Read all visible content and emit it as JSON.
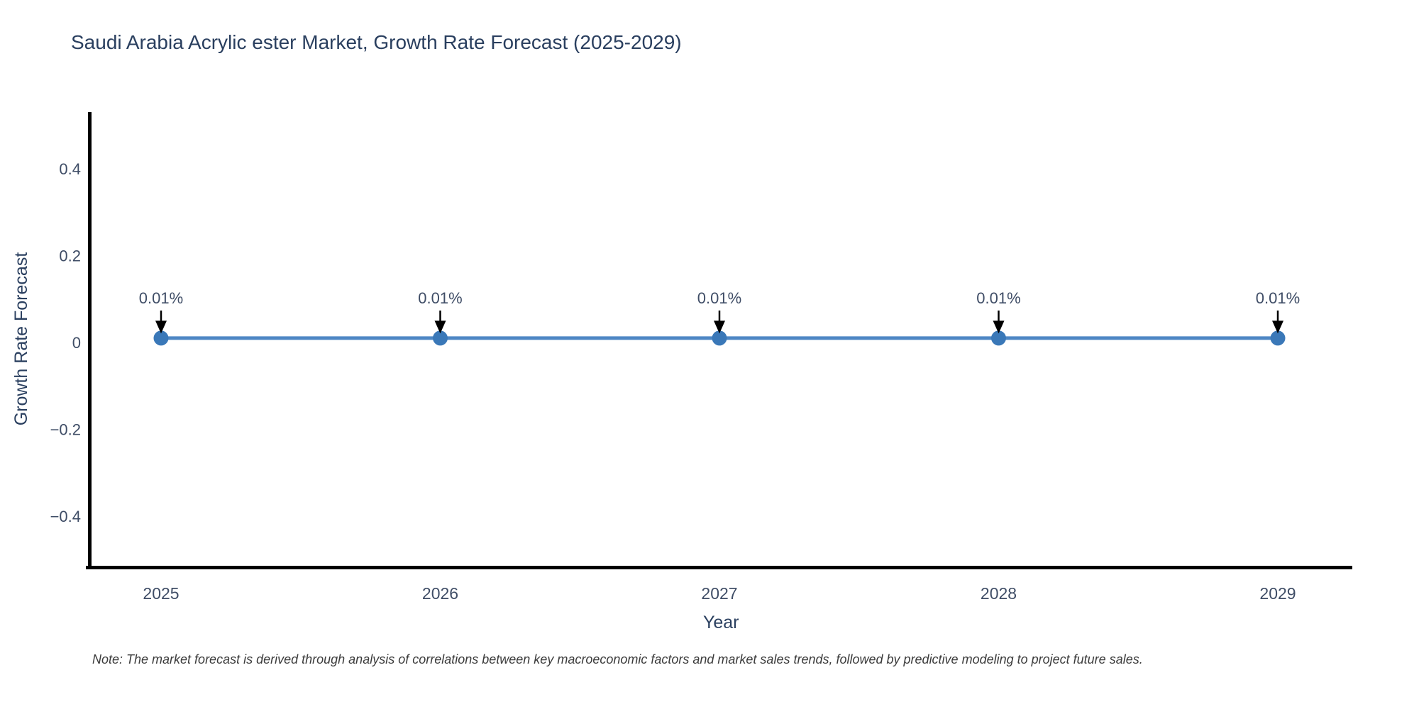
{
  "chart_data": {
    "type": "line",
    "title": "Saudi Arabia Acrylic ester Market, Growth Rate Forecast (2025-2029)",
    "note": "Note: The market forecast is derived through analysis of correlations between key macroeconomic factors and market sales trends, followed by predictive modeling to project future sales.",
    "xlabel": "Year",
    "ylabel": "Growth Rate Forecast",
    "categories": [
      "2025",
      "2026",
      "2027",
      "2028",
      "2029"
    ],
    "series": [
      {
        "name": "Growth Rate Forecast",
        "values": [
          0.01,
          0.01,
          0.01,
          0.01,
          0.01
        ]
      }
    ],
    "point_labels": [
      "0.01%",
      "0.01%",
      "0.01%",
      "0.01%",
      "0.01%"
    ],
    "yticks": [
      {
        "value": 0.4,
        "label": "0.4"
      },
      {
        "value": 0.2,
        "label": "0.2"
      },
      {
        "value": 0,
        "label": "0"
      },
      {
        "value": -0.2,
        "label": "−0.2"
      },
      {
        "value": -0.4,
        "label": "−0.4"
      }
    ],
    "ylim": [
      -0.52,
      0.53
    ],
    "grid": false,
    "legend": "none",
    "annotation_style": "arrow-down",
    "colors": {
      "line": "#4e87c4",
      "marker": "#3a78b8",
      "arrow": "#000000",
      "axis": "#000000",
      "title": "#2a3f5f",
      "axis_label": "#2a3f5f",
      "tick_label": "#3f4d66",
      "note_text": "#3b3b3b",
      "background": "#ffffff"
    }
  }
}
